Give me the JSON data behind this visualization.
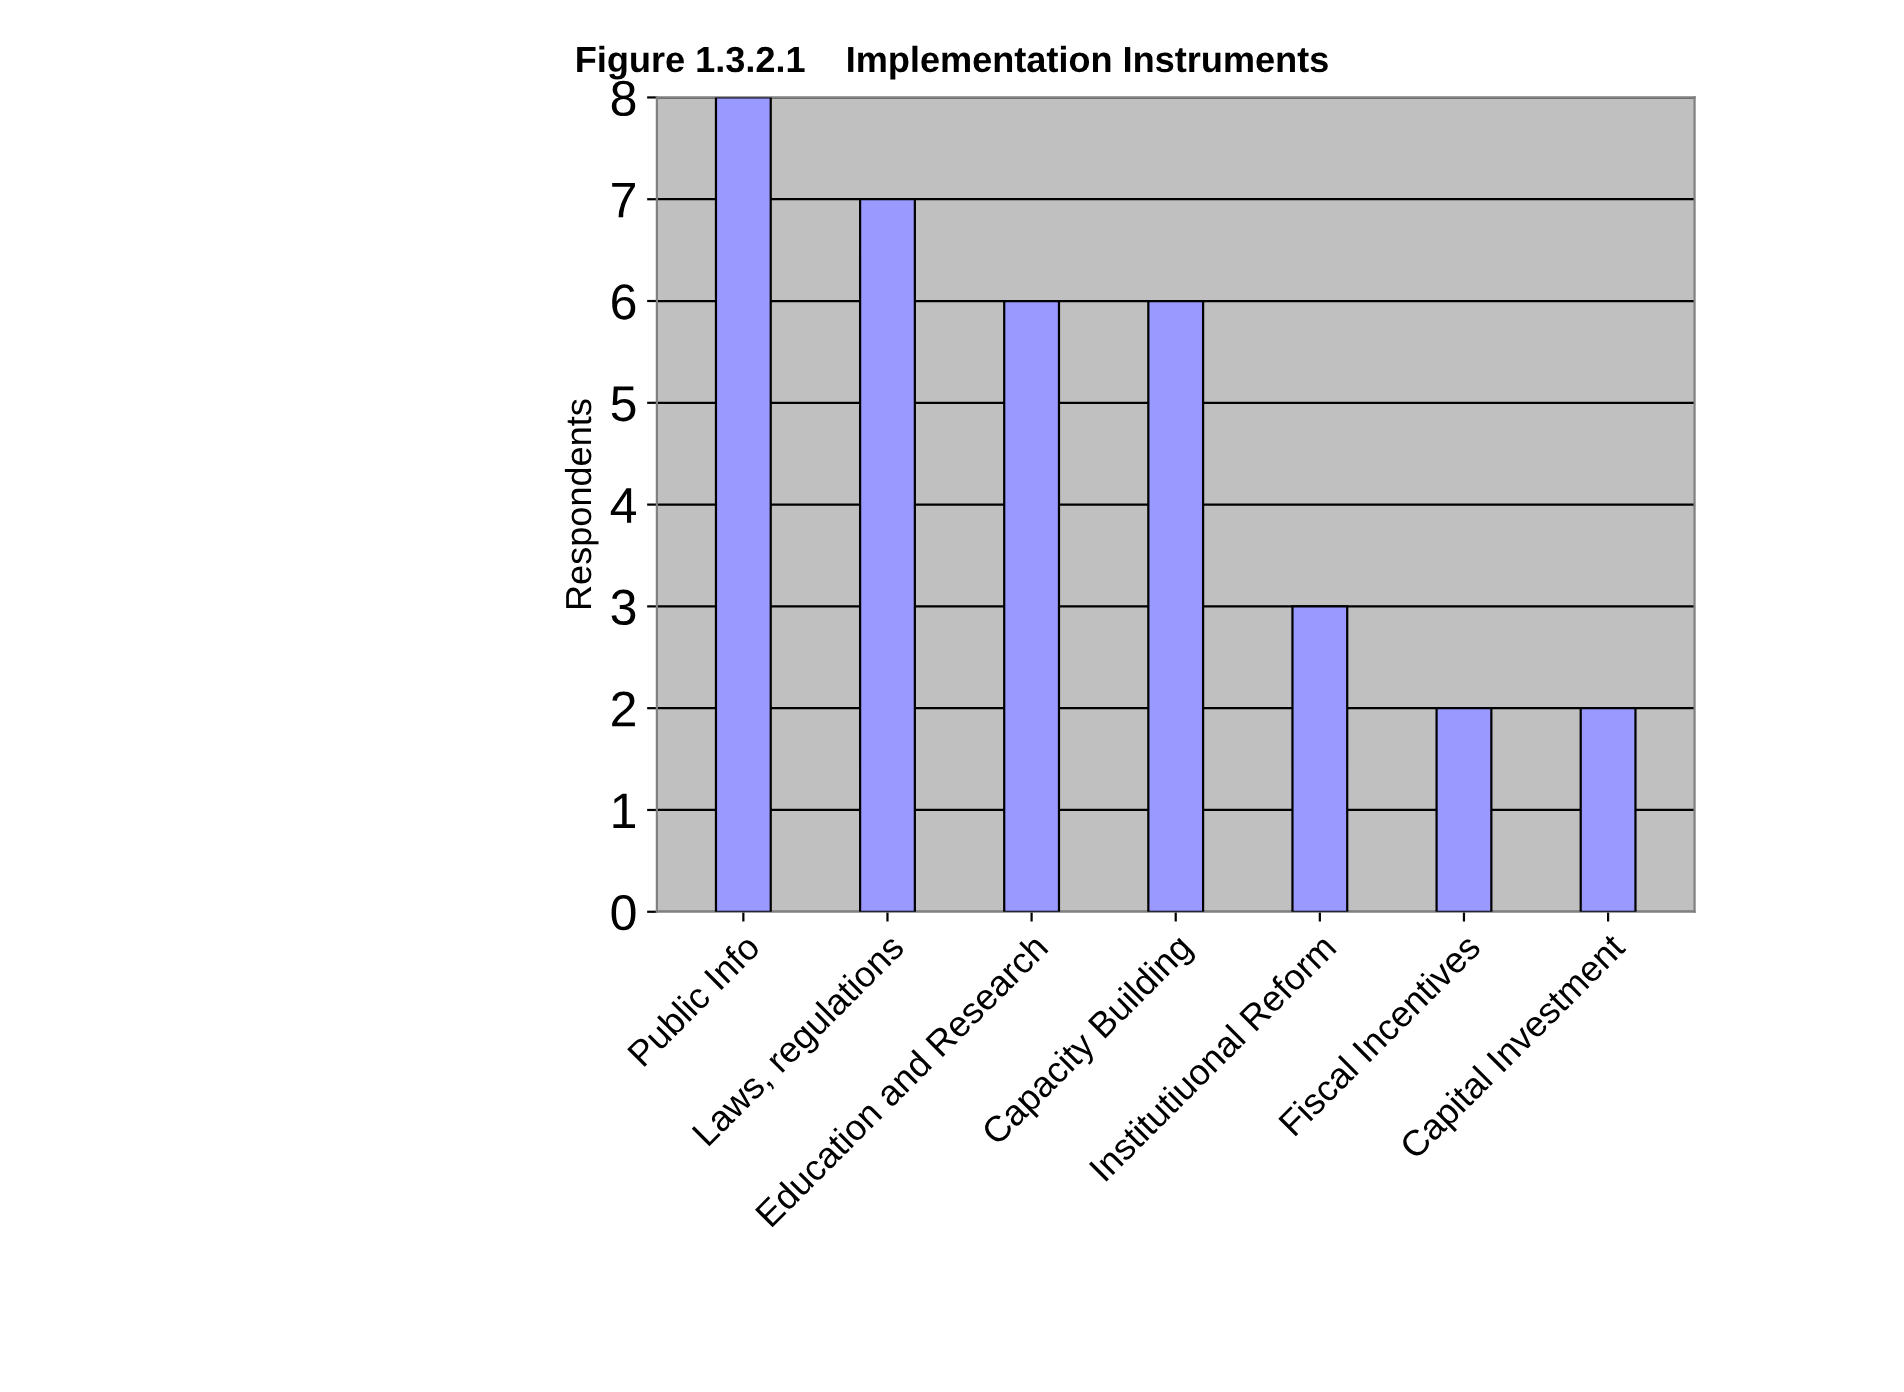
{
  "chart_data": {
    "type": "bar",
    "title": "Figure 1.3.2.1    Implementation Instruments",
    "ylabel": "Respondents",
    "categories": [
      "Public Info",
      "Laws, regulations",
      "Education and Research",
      "Capacity Building",
      "Institutiuonal Reform",
      "Fiscal Incentives",
      "Capital Investment"
    ],
    "values": [
      8,
      7,
      6,
      6,
      3,
      2,
      2
    ],
    "color": "#9999ff",
    "ylim": [
      0,
      8
    ],
    "yticks": [
      0,
      1,
      2,
      3,
      4,
      5,
      6,
      7,
      8
    ],
    "grid": "y"
  }
}
